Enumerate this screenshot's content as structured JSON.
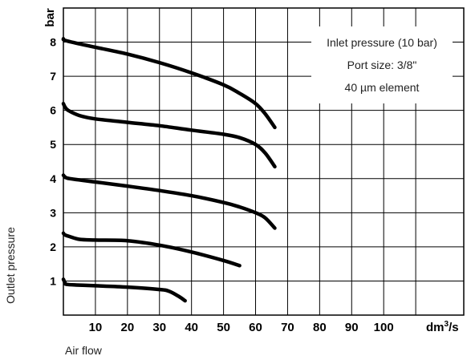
{
  "chart_data": {
    "type": "line",
    "xlabel": "Air flow",
    "ylabel": "Outlet pressure",
    "x_unit": "dm³/s",
    "y_unit": "bar",
    "xlim": [
      0,
      125
    ],
    "ylim": [
      0,
      9
    ],
    "grid": true,
    "x_ticks": [
      10,
      20,
      30,
      40,
      50,
      60,
      70,
      80,
      90,
      100
    ],
    "y_ticks": [
      1,
      2,
      3,
      4,
      5,
      6,
      7,
      8
    ],
    "annotations": [
      "Inlet pressure (10 bar)",
      "Port size: 3/8\"",
      "40 µm element"
    ],
    "series": [
      {
        "x": [
          0,
          0.5,
          5,
          10,
          20,
          30,
          40,
          50,
          55,
          60,
          63,
          66
        ],
        "y": [
          8.1,
          8.05,
          7.95,
          7.85,
          7.65,
          7.4,
          7.1,
          6.75,
          6.5,
          6.2,
          5.9,
          5.5
        ]
      },
      {
        "x": [
          0,
          0.5,
          1.5,
          5,
          10,
          20,
          30,
          40,
          50,
          55,
          60,
          63,
          66
        ],
        "y": [
          6.2,
          6.1,
          6.0,
          5.85,
          5.75,
          5.65,
          5.55,
          5.42,
          5.3,
          5.2,
          5.0,
          4.75,
          4.35
        ]
      },
      {
        "x": [
          0,
          0.5,
          2,
          10,
          20,
          30,
          40,
          50,
          55,
          60,
          63,
          66
        ],
        "y": [
          4.1,
          4.05,
          4.0,
          3.9,
          3.78,
          3.65,
          3.5,
          3.3,
          3.17,
          3.0,
          2.85,
          2.55
        ]
      },
      {
        "x": [
          0,
          0.5,
          2,
          5,
          10,
          20,
          30,
          40,
          50,
          55
        ],
        "y": [
          2.4,
          2.35,
          2.3,
          2.22,
          2.2,
          2.18,
          2.05,
          1.85,
          1.6,
          1.45
        ]
      },
      {
        "x": [
          0,
          0.5,
          1,
          5,
          10,
          20,
          30,
          33,
          36,
          38
        ],
        "y": [
          1.05,
          0.95,
          0.9,
          0.88,
          0.86,
          0.82,
          0.75,
          0.7,
          0.55,
          0.42
        ]
      }
    ]
  }
}
